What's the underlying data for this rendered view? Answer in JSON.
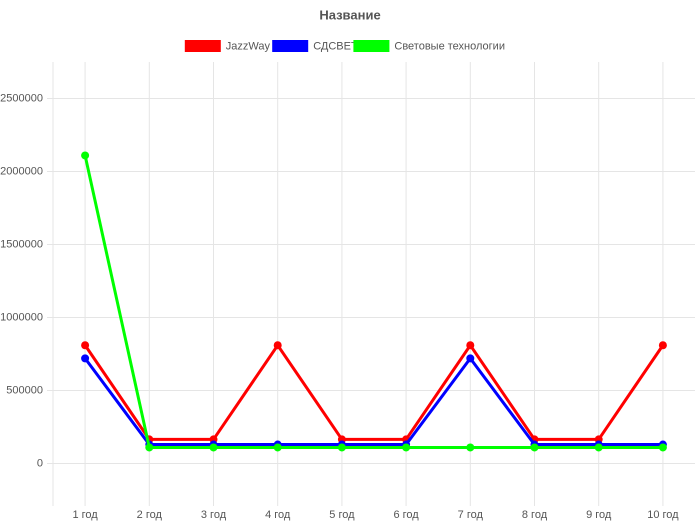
{
  "chart_data": {
    "type": "line",
    "title": "Название",
    "categories": [
      "1 год",
      "2 год",
      "3 год",
      "4 год",
      "5 год",
      "6 год",
      "7 год",
      "8 год",
      "9 год",
      "10 год"
    ],
    "series": [
      {
        "name": "JazzWay",
        "color": "#ff0000",
        "values": [
          810000,
          165000,
          165000,
          810000,
          165000,
          165000,
          810000,
          165000,
          165000,
          810000
        ]
      },
      {
        "name": "СДСВЕТ",
        "color": "#0000ff",
        "values": [
          720000,
          130000,
          130000,
          130000,
          130000,
          130000,
          720000,
          130000,
          130000,
          130000
        ]
      },
      {
        "name": "Световые технологии",
        "color": "#00ff00",
        "values": [
          2110000,
          110000,
          110000,
          110000,
          110000,
          110000,
          110000,
          110000,
          110000,
          110000
        ]
      }
    ],
    "ylim": [
      -250000,
      2750000
    ],
    "yticks": [
      0,
      500000,
      1000000,
      1500000,
      2000000,
      2500000
    ],
    "grid": true
  }
}
